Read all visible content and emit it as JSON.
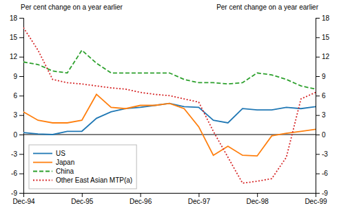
{
  "chart_data": {
    "type": "line",
    "ylabel": "Per cent change on a year earlier",
    "y2label": "Per cent change on a year earlier",
    "categories": [
      "Dec-94",
      null,
      null,
      null,
      "Dec-95",
      null,
      null,
      null,
      "Dec-96",
      null,
      null,
      null,
      "Dec-97",
      null,
      null,
      null,
      "Dec-98",
      null,
      null,
      null,
      "Dec-99"
    ],
    "ylim": [
      -9,
      18
    ],
    "yticks": [
      -9,
      -6,
      -3,
      0,
      3,
      6,
      9,
      12,
      15,
      18
    ],
    "y2lim": [
      -9,
      18
    ],
    "y2ticks": [
      -9,
      -6,
      -3,
      0,
      3,
      6,
      9,
      12,
      15,
      18
    ],
    "grid": false,
    "legend": "lower left",
    "series": [
      {
        "name": "US",
        "line_style": "solid",
        "values": [
          0.3,
          0.1,
          0.0,
          0.5,
          0.5,
          2.5,
          3.5,
          4.0,
          4.2,
          4.5,
          4.8,
          4.3,
          4.2,
          2.2,
          1.8,
          4.0,
          3.8,
          3.8,
          4.2,
          4.0,
          4.3
        ]
      },
      {
        "name": "Japan",
        "line_style": "solid",
        "values": [
          3.5,
          2.2,
          1.8,
          1.8,
          2.2,
          6.2,
          4.2,
          4.0,
          4.5,
          4.5,
          4.8,
          4.0,
          1.2,
          -3.2,
          -1.8,
          -3.2,
          -3.3,
          -0.2,
          0.2,
          0.5,
          0.8
        ]
      },
      {
        "name": "China",
        "line_style": "dashed",
        "values": [
          11.2,
          10.8,
          9.8,
          9.5,
          13.0,
          11.0,
          9.5,
          9.5,
          9.5,
          9.5,
          9.5,
          8.5,
          8.0,
          8.0,
          7.8,
          8.0,
          9.5,
          9.2,
          8.5,
          7.5,
          7.0
        ]
      },
      {
        "name": "Other East Asian MTP(a)",
        "line_style": "dotted",
        "values": [
          16.5,
          13.0,
          8.5,
          8.0,
          7.8,
          7.5,
          7.2,
          7.0,
          6.5,
          6.2,
          6.0,
          5.5,
          5.0,
          0.5,
          -3.5,
          -7.5,
          -7.2,
          -6.8,
          -3.5,
          5.5,
          6.5
        ]
      }
    ]
  }
}
